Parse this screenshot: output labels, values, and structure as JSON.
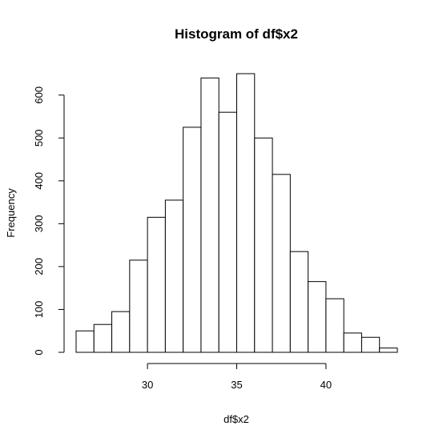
{
  "chart_data": {
    "type": "bar",
    "title": "Histogram of df$x2",
    "xlabel": "df$x2",
    "ylabel": "Frequency",
    "bin_edges": [
      26,
      27,
      28,
      29,
      30,
      31,
      32,
      33,
      34,
      35,
      36,
      37,
      38,
      39,
      40,
      41,
      42,
      43,
      44
    ],
    "values": [
      50,
      65,
      95,
      215,
      315,
      355,
      525,
      640,
      560,
      650,
      500,
      415,
      235,
      165,
      125,
      45,
      35,
      10
    ],
    "xlim": [
      26,
      44
    ],
    "ylim": [
      0,
      650
    ],
    "x_ticks": [
      30,
      35,
      40
    ],
    "x_tick_labels": [
      "30",
      "35",
      "40"
    ],
    "y_ticks": [
      0,
      100,
      200,
      300,
      400,
      500,
      600
    ],
    "y_tick_labels": [
      "0",
      "100",
      "200",
      "300",
      "400",
      "500",
      "600"
    ],
    "grid": false,
    "bar_color": "#ffffff",
    "edge_color": "#000000"
  }
}
